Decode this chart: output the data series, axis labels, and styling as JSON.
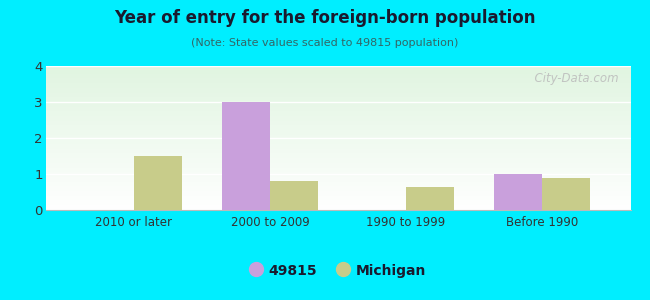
{
  "title": "Year of entry for the foreign-born population",
  "subtitle": "(Note: State values scaled to 49815 population)",
  "categories": [
    "2010 or later",
    "2000 to 2009",
    "1990 to 1999",
    "Before 1990"
  ],
  "series_49815": [
    0,
    3,
    0,
    1
  ],
  "series_michigan": [
    1.5,
    0.8,
    0.65,
    0.9
  ],
  "bar_color_49815": "#c9a0dc",
  "bar_color_michigan": "#c8cc8a",
  "ylim": [
    0,
    4
  ],
  "yticks": [
    0,
    1,
    2,
    3,
    4
  ],
  "background_outer": "#00eeff",
  "grid_color": "#ffffff",
  "watermark": "  City-Data.com",
  "legend_label_49815": "49815",
  "legend_label_michigan": "Michigan",
  "bar_width": 0.35,
  "title_color": "#1a1a2e",
  "subtitle_color": "#336666",
  "tick_color": "#333333",
  "legend_text_color": "#1a1a2e"
}
